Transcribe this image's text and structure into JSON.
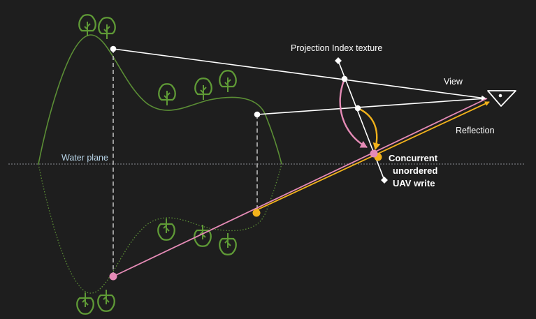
{
  "labels": {
    "projection": "Projection Index texture",
    "view": "View",
    "reflection": "Reflection",
    "water_plane": "Water plane",
    "concurrent_1": "Concurrent",
    "concurrent_2": "unordered",
    "concurrent_3": "UAV write"
  },
  "colors": {
    "background": "#1e1e1e",
    "terrain": "#5b8e35",
    "tree": "#5f9a36",
    "ray": "#ffffff",
    "pink": "#e58bb6",
    "orange": "#f2b21b",
    "water_line": "#8a8f94",
    "water_label": "#b7d3e6"
  },
  "icons": [
    "eye-icon",
    "tree-icon"
  ]
}
